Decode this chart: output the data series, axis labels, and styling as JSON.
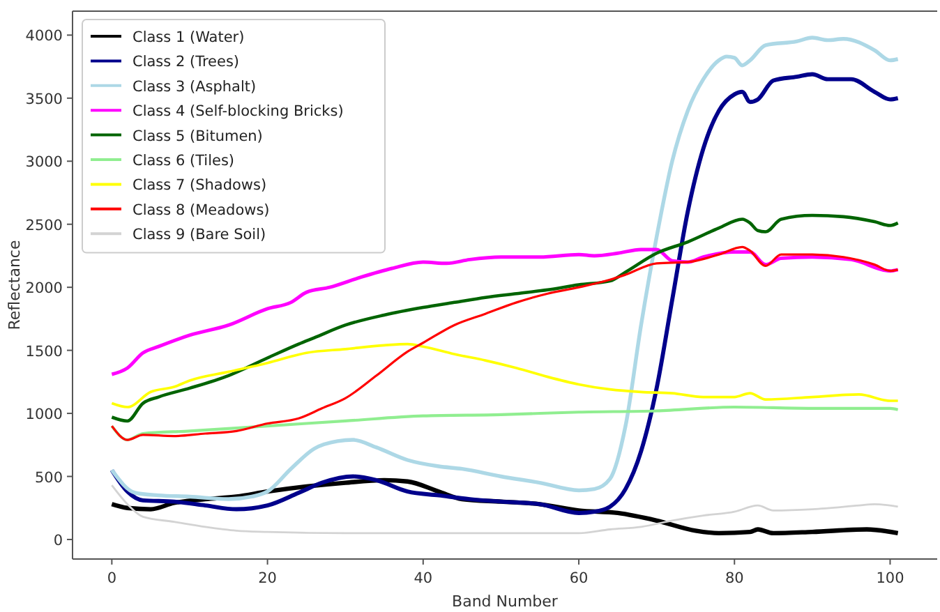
{
  "chart_data": {
    "type": "line",
    "xlabel": "Band Number",
    "ylabel": "Reflectance",
    "xlim": [
      -5.05,
      106.05
    ],
    "ylim": [
      -155,
      4190
    ],
    "xticks": [
      0,
      20,
      40,
      60,
      80,
      100
    ],
    "yticks": [
      0,
      500,
      1000,
      1500,
      2000,
      2500,
      3000,
      3500,
      4000
    ],
    "grid": false,
    "legend": "top left",
    "marker": "none",
    "line_style": "solid",
    "series": [
      {
        "name": "Class 1 (Water)",
        "color": "#000000",
        "x": [
          0,
          2,
          5,
          8,
          12,
          16,
          20,
          25,
          30,
          35,
          38,
          42,
          45,
          50,
          55,
          60,
          65,
          70,
          75,
          78,
          82,
          83,
          85,
          90,
          97,
          101
        ],
        "values": [
          280,
          250,
          240,
          290,
          320,
          340,
          380,
          420,
          450,
          470,
          460,
          380,
          320,
          300,
          280,
          230,
          210,
          150,
          70,
          50,
          60,
          80,
          50,
          60,
          80,
          50
        ]
      },
      {
        "name": "Class 2 (Trees)",
        "color": "#00008b",
        "x": [
          0,
          2,
          4,
          8,
          12,
          16,
          20,
          24,
          27,
          31,
          34,
          38,
          42,
          46,
          50,
          55,
          60,
          62,
          64,
          66,
          68,
          70,
          72,
          74,
          76,
          78,
          80,
          81,
          82,
          83,
          85,
          88,
          90,
          92,
          95,
          98,
          100,
          101
        ],
        "values": [
          550,
          380,
          310,
          300,
          270,
          240,
          270,
          370,
          450,
          500,
          470,
          380,
          350,
          320,
          300,
          280,
          210,
          220,
          260,
          400,
          700,
          1200,
          1900,
          2600,
          3100,
          3400,
          3530,
          3550,
          3470,
          3490,
          3640,
          3670,
          3690,
          3650,
          3650,
          3550,
          3490,
          3500
        ]
      },
      {
        "name": "Class 3 (Asphalt)",
        "color": "#add8e6",
        "x": [
          0,
          3,
          6,
          10,
          15,
          18,
          20,
          23,
          26,
          29,
          31,
          34,
          38,
          42,
          45,
          50,
          55,
          60,
          62,
          64,
          66,
          68,
          70,
          72,
          74,
          76,
          78,
          79,
          80,
          81,
          82,
          84,
          88,
          90,
          92,
          94,
          98,
          100,
          101
        ],
        "values": [
          550,
          370,
          350,
          340,
          320,
          340,
          380,
          560,
          720,
          780,
          790,
          730,
          630,
          580,
          560,
          500,
          450,
          390,
          400,
          480,
          900,
          1700,
          2400,
          3000,
          3400,
          3650,
          3800,
          3830,
          3820,
          3760,
          3800,
          3920,
          3950,
          3980,
          3960,
          3970,
          3880,
          3800,
          3810
        ]
      },
      {
        "name": "Class 4 (Self-blocking Bricks)",
        "color": "#ff00ff",
        "x": [
          0,
          2,
          4,
          6,
          10,
          15,
          20,
          23,
          25,
          28,
          32,
          36,
          40,
          43,
          46,
          50,
          55,
          60,
          62,
          65,
          68,
          70,
          72,
          74,
          76,
          80,
          82,
          84,
          86,
          90,
          95,
          100,
          101
        ],
        "values": [
          1310,
          1360,
          1480,
          1530,
          1620,
          1700,
          1830,
          1880,
          1960,
          2000,
          2080,
          2150,
          2200,
          2190,
          2220,
          2240,
          2240,
          2260,
          2250,
          2270,
          2300,
          2300,
          2210,
          2200,
          2240,
          2280,
          2280,
          2180,
          2230,
          2240,
          2220,
          2130,
          2140
        ]
      },
      {
        "name": "Class 5 (Bitumen)",
        "color": "#006400",
        "x": [
          0,
          2,
          4,
          6,
          10,
          15,
          20,
          24,
          26,
          30,
          35,
          40,
          44,
          48,
          52,
          56,
          60,
          64,
          66,
          70,
          74,
          78,
          81,
          82,
          83,
          84,
          86,
          90,
          94,
          98,
          100,
          101
        ],
        "values": [
          970,
          940,
          1080,
          1130,
          1200,
          1300,
          1440,
          1550,
          1600,
          1700,
          1780,
          1840,
          1880,
          1920,
          1950,
          1980,
          2020,
          2050,
          2120,
          2270,
          2360,
          2470,
          2540,
          2510,
          2450,
          2440,
          2540,
          2570,
          2560,
          2520,
          2490,
          2510
        ]
      },
      {
        "name": "Class 6 (Tiles)",
        "color": "#90ee90",
        "x": [
          0,
          2,
          4,
          10,
          20,
          30,
          40,
          50,
          60,
          70,
          80,
          90,
          100,
          101
        ],
        "values": [
          900,
          790,
          840,
          860,
          900,
          940,
          980,
          990,
          1010,
          1020,
          1050,
          1040,
          1040,
          1030
        ]
      },
      {
        "name": "Class 7 (Shadows)",
        "color": "#ffff00",
        "x": [
          0,
          2,
          5,
          8,
          10,
          15,
          20,
          25,
          30,
          35,
          38,
          40,
          44,
          48,
          52,
          56,
          60,
          64,
          68,
          72,
          76,
          80,
          82,
          84,
          90,
          96,
          100,
          101
        ],
        "values": [
          1080,
          1050,
          1170,
          1210,
          1260,
          1330,
          1400,
          1480,
          1510,
          1540,
          1550,
          1530,
          1470,
          1420,
          1360,
          1290,
          1230,
          1190,
          1170,
          1160,
          1130,
          1130,
          1160,
          1110,
          1130,
          1150,
          1100,
          1100
        ]
      },
      {
        "name": "Class 8 (Meadows)",
        "color": "#ff0000",
        "x": [
          0,
          2,
          4,
          8,
          12,
          16,
          20,
          24,
          27,
          30,
          34,
          38,
          40,
          44,
          48,
          52,
          56,
          60,
          64,
          66,
          70,
          74,
          78,
          81,
          82,
          84,
          86,
          90,
          94,
          98,
          100,
          101
        ],
        "values": [
          900,
          790,
          830,
          820,
          840,
          860,
          920,
          960,
          1040,
          1120,
          1300,
          1490,
          1560,
          1700,
          1790,
          1880,
          1950,
          2000,
          2060,
          2100,
          2190,
          2200,
          2260,
          2320,
          2290,
          2170,
          2260,
          2260,
          2240,
          2180,
          2130,
          2140
        ]
      },
      {
        "name": "Class 9 (Bare Soil)",
        "color": "#d3d3d3",
        "x": [
          0,
          2,
          4,
          8,
          12,
          16,
          20,
          30,
          40,
          50,
          60,
          64,
          68,
          72,
          76,
          80,
          83,
          85,
          90,
          96,
          98,
          101
        ],
        "values": [
          430,
          280,
          180,
          140,
          100,
          70,
          60,
          50,
          50,
          50,
          50,
          80,
          100,
          150,
          190,
          220,
          270,
          230,
          240,
          270,
          280,
          260
        ]
      }
    ]
  }
}
